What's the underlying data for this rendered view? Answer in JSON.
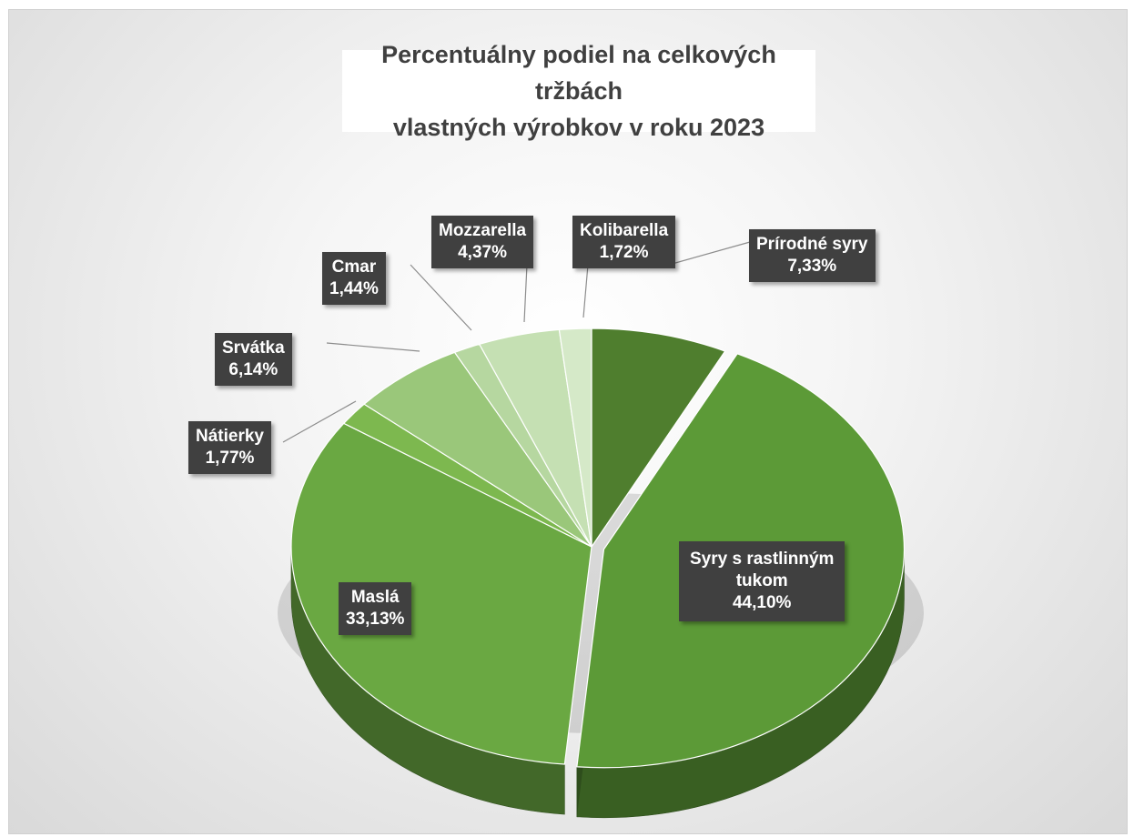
{
  "chart_data": {
    "type": "pie",
    "title": "Percentuálny podiel na celkových tržbách vlastných výrobkov v roku 2023",
    "title_lines": [
      "Percentuálny podiel na celkových tržbách",
      "vlastných výrobkov v roku 2023"
    ],
    "slices": [
      {
        "name": "Prírodné syry",
        "value": 7.33,
        "label": "7,33%",
        "color": "#4f7e2e"
      },
      {
        "name": "Syry s rastlinným tukom",
        "name_lines": [
          "Syry s rastlinným",
          "tukom"
        ],
        "value": 44.1,
        "label": "44,10%",
        "color": "#5c9a37"
      },
      {
        "name": "Maslá",
        "value": 33.13,
        "label": "33,13%",
        "color": "#6aa842"
      },
      {
        "name": "Nátierky",
        "value": 1.77,
        "label": "1,77%",
        "color": "#7db84f"
      },
      {
        "name": "Srvátka",
        "value": 6.14,
        "label": "6,14%",
        "color": "#9ac77a"
      },
      {
        "name": "Cmar",
        "value": 1.44,
        "label": "1,44%",
        "color": "#b6d7a0"
      },
      {
        "name": "Mozzarella",
        "value": 4.37,
        "label": "4,37%",
        "color": "#c5e0b3"
      },
      {
        "name": "Kolibarella",
        "value": 1.72,
        "label": "1,72%",
        "color": "#d5e9c8"
      }
    ],
    "explode": [
      "Syry s rastlinným tukom"
    ],
    "legend": "none",
    "style": "3d-pie"
  }
}
